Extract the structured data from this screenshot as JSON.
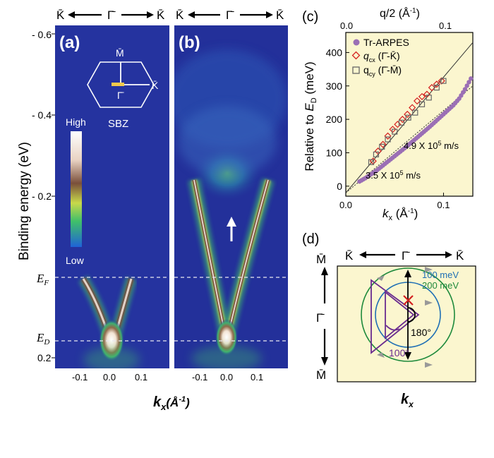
{
  "panels": {
    "a": {
      "letter": "(a)"
    },
    "b": {
      "letter": "(b)"
    },
    "c": {
      "letter": "(c)"
    },
    "d": {
      "letter": "(d)"
    }
  },
  "arpes": {
    "direction": {
      "left": "K̄",
      "center": "Γ̄",
      "right": "K̄"
    },
    "y_axis_label": "Binding energy (eV)",
    "y_ticks": [
      "- 0.6",
      "- 0.4",
      "- 0.2",
      "0.2"
    ],
    "x_axis_label_main": "k",
    "x_axis_label_sub": "x",
    "x_axis_unit": "(Å",
    "x_axis_unit_exp": "-1",
    "x_axis_unit_close": ")",
    "x_ticks": [
      "-0.1",
      "0.0",
      "0.1"
    ],
    "ef_label": "E",
    "ef_sub": "F",
    "ed_label": "E",
    "ed_sub": "D",
    "colorbar": {
      "high": "High",
      "low": "Low"
    },
    "sbz": {
      "label": "SBZ",
      "m_label": "M̄",
      "k_label": "K̄",
      "gamma_label": "Γ̄"
    }
  },
  "chart_data": {
    "type": "scatter",
    "top_axis_label": "q/2 (Å",
    "top_axis_exp": "-1",
    "top_axis_close": ")",
    "top_ticks": [
      "0.0",
      "0.1"
    ],
    "xlabel_main": "k",
    "xlabel_sub": "x",
    "xlabel_unit": " (Å",
    "xlabel_exp": "-1",
    "xlabel_close": ")",
    "x_ticks": [
      "0.0",
      "0.1"
    ],
    "ylabel_prefix": "Relative to ",
    "ylabel_var": "E",
    "ylabel_sub": "D",
    "ylabel_suffix": " (meV)",
    "y_ticks": [
      "0",
      "100",
      "200",
      "300",
      "400"
    ],
    "xlim": [
      0,
      0.13
    ],
    "ylim": [
      -30,
      460
    ],
    "legend": [
      {
        "name": "Tr-ARPES",
        "marker": "filled-circle",
        "color": "#9b6fb5"
      },
      {
        "name": "q",
        "sub": "cx",
        "paren": " (Γ̄-K̄)",
        "marker": "open-diamond",
        "color": "#d42020"
      },
      {
        "name": "q",
        "sub": "cy",
        "paren": " (Γ̄-M̄)",
        "marker": "open-square",
        "color": "#666666"
      }
    ],
    "annotations": [
      {
        "main": "4.9 X 10",
        "exp": "5",
        "unit": " m/s"
      },
      {
        "main": "3.5 X 10",
        "exp": "5",
        "unit": " m/s"
      }
    ],
    "series": [
      {
        "name": "Tr-ARPES",
        "x": [
          0.014,
          0.02,
          0.026,
          0.032,
          0.038,
          0.044,
          0.05,
          0.056,
          0.062,
          0.068,
          0.074,
          0.08,
          0.086,
          0.092,
          0.098,
          0.104,
          0.11,
          0.116,
          0.122,
          0.128
        ],
        "y": [
          14,
          24,
          36,
          48,
          62,
          76,
          90,
          104,
          118,
          133,
          148,
          163,
          178,
          194,
          210,
          226,
          242,
          262,
          290,
          322
        ]
      },
      {
        "name": "qcx",
        "x": [
          0.028,
          0.033,
          0.038,
          0.043,
          0.048,
          0.053,
          0.058,
          0.063,
          0.068,
          0.073,
          0.078,
          0.083,
          0.088,
          0.093,
          0.098
        ],
        "y": [
          75,
          105,
          125,
          150,
          170,
          185,
          200,
          215,
          235,
          255,
          268,
          275,
          295,
          305,
          315
        ]
      },
      {
        "name": "qcy",
        "x": [
          0.026,
          0.031,
          0.037,
          0.043,
          0.05,
          0.057,
          0.064,
          0.071,
          0.078,
          0.085,
          0.093,
          0.1
        ],
        "y": [
          72,
          95,
          118,
          140,
          163,
          190,
          205,
          220,
          245,
          265,
          295,
          315
        ]
      }
    ],
    "fit_lines": [
      {
        "velocity": "4.9 X 10^5 m/s",
        "x": [
          0.0,
          0.13
        ],
        "y": [
          -20,
          430
        ],
        "style": "solid"
      },
      {
        "velocity": "3.5 X 10^5 m/s",
        "x": [
          0.0,
          0.13
        ],
        "y": [
          -20,
          300
        ],
        "style": "dotted"
      }
    ]
  },
  "fermi_surface": {
    "direction": {
      "left": "K̄",
      "center": "Γ̄",
      "right": "K̄"
    },
    "vertical": {
      "top": "M̄",
      "center": "Γ̄",
      "bottom": "M̄"
    },
    "contours": [
      {
        "label": "100 meV",
        "color": "#1f6fb5"
      },
      {
        "label": "200 meV",
        "color": "#1e8a3c"
      }
    ],
    "angles": [
      "180°",
      "100°"
    ],
    "x_label_main": "k",
    "x_label_sub": "x"
  }
}
